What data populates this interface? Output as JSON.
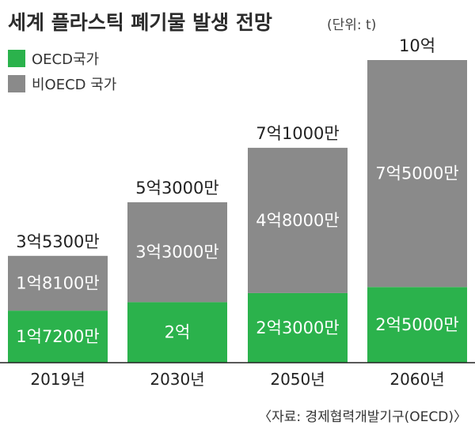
{
  "title": "세계 플라스틱 폐기물 발생 전망",
  "unit_note": "(단위: t)",
  "source": "〈자료: 경제협력개발기구(OECD)〉",
  "colors": {
    "oecd": "#2bb24c",
    "non_oecd": "#8a8a8a",
    "axis": "#222222"
  },
  "chart_data": {
    "type": "bar",
    "stacked": true,
    "categories": [
      "2019년",
      "2030년",
      "2050년",
      "2060년"
    ],
    "series": [
      {
        "name": "OECD국가",
        "values": [
          172000000,
          200000000,
          230000000,
          250000000
        ],
        "labels": [
          "1억7200만",
          "2억",
          "2억3000만",
          "2억5000만"
        ]
      },
      {
        "name": "비OECD 국가",
        "values": [
          181000000,
          330000000,
          480000000,
          750000000
        ],
        "labels": [
          "1억8100만",
          "3억3000만",
          "4억8000만",
          "7억5000만"
        ]
      }
    ],
    "totals": [
      353000000,
      530000000,
      710000000,
      1000000000
    ],
    "total_labels": [
      "3억5300만",
      "5억3000만",
      "7억1000만",
      "10억"
    ],
    "legend_position": "top-left",
    "grid": false
  }
}
